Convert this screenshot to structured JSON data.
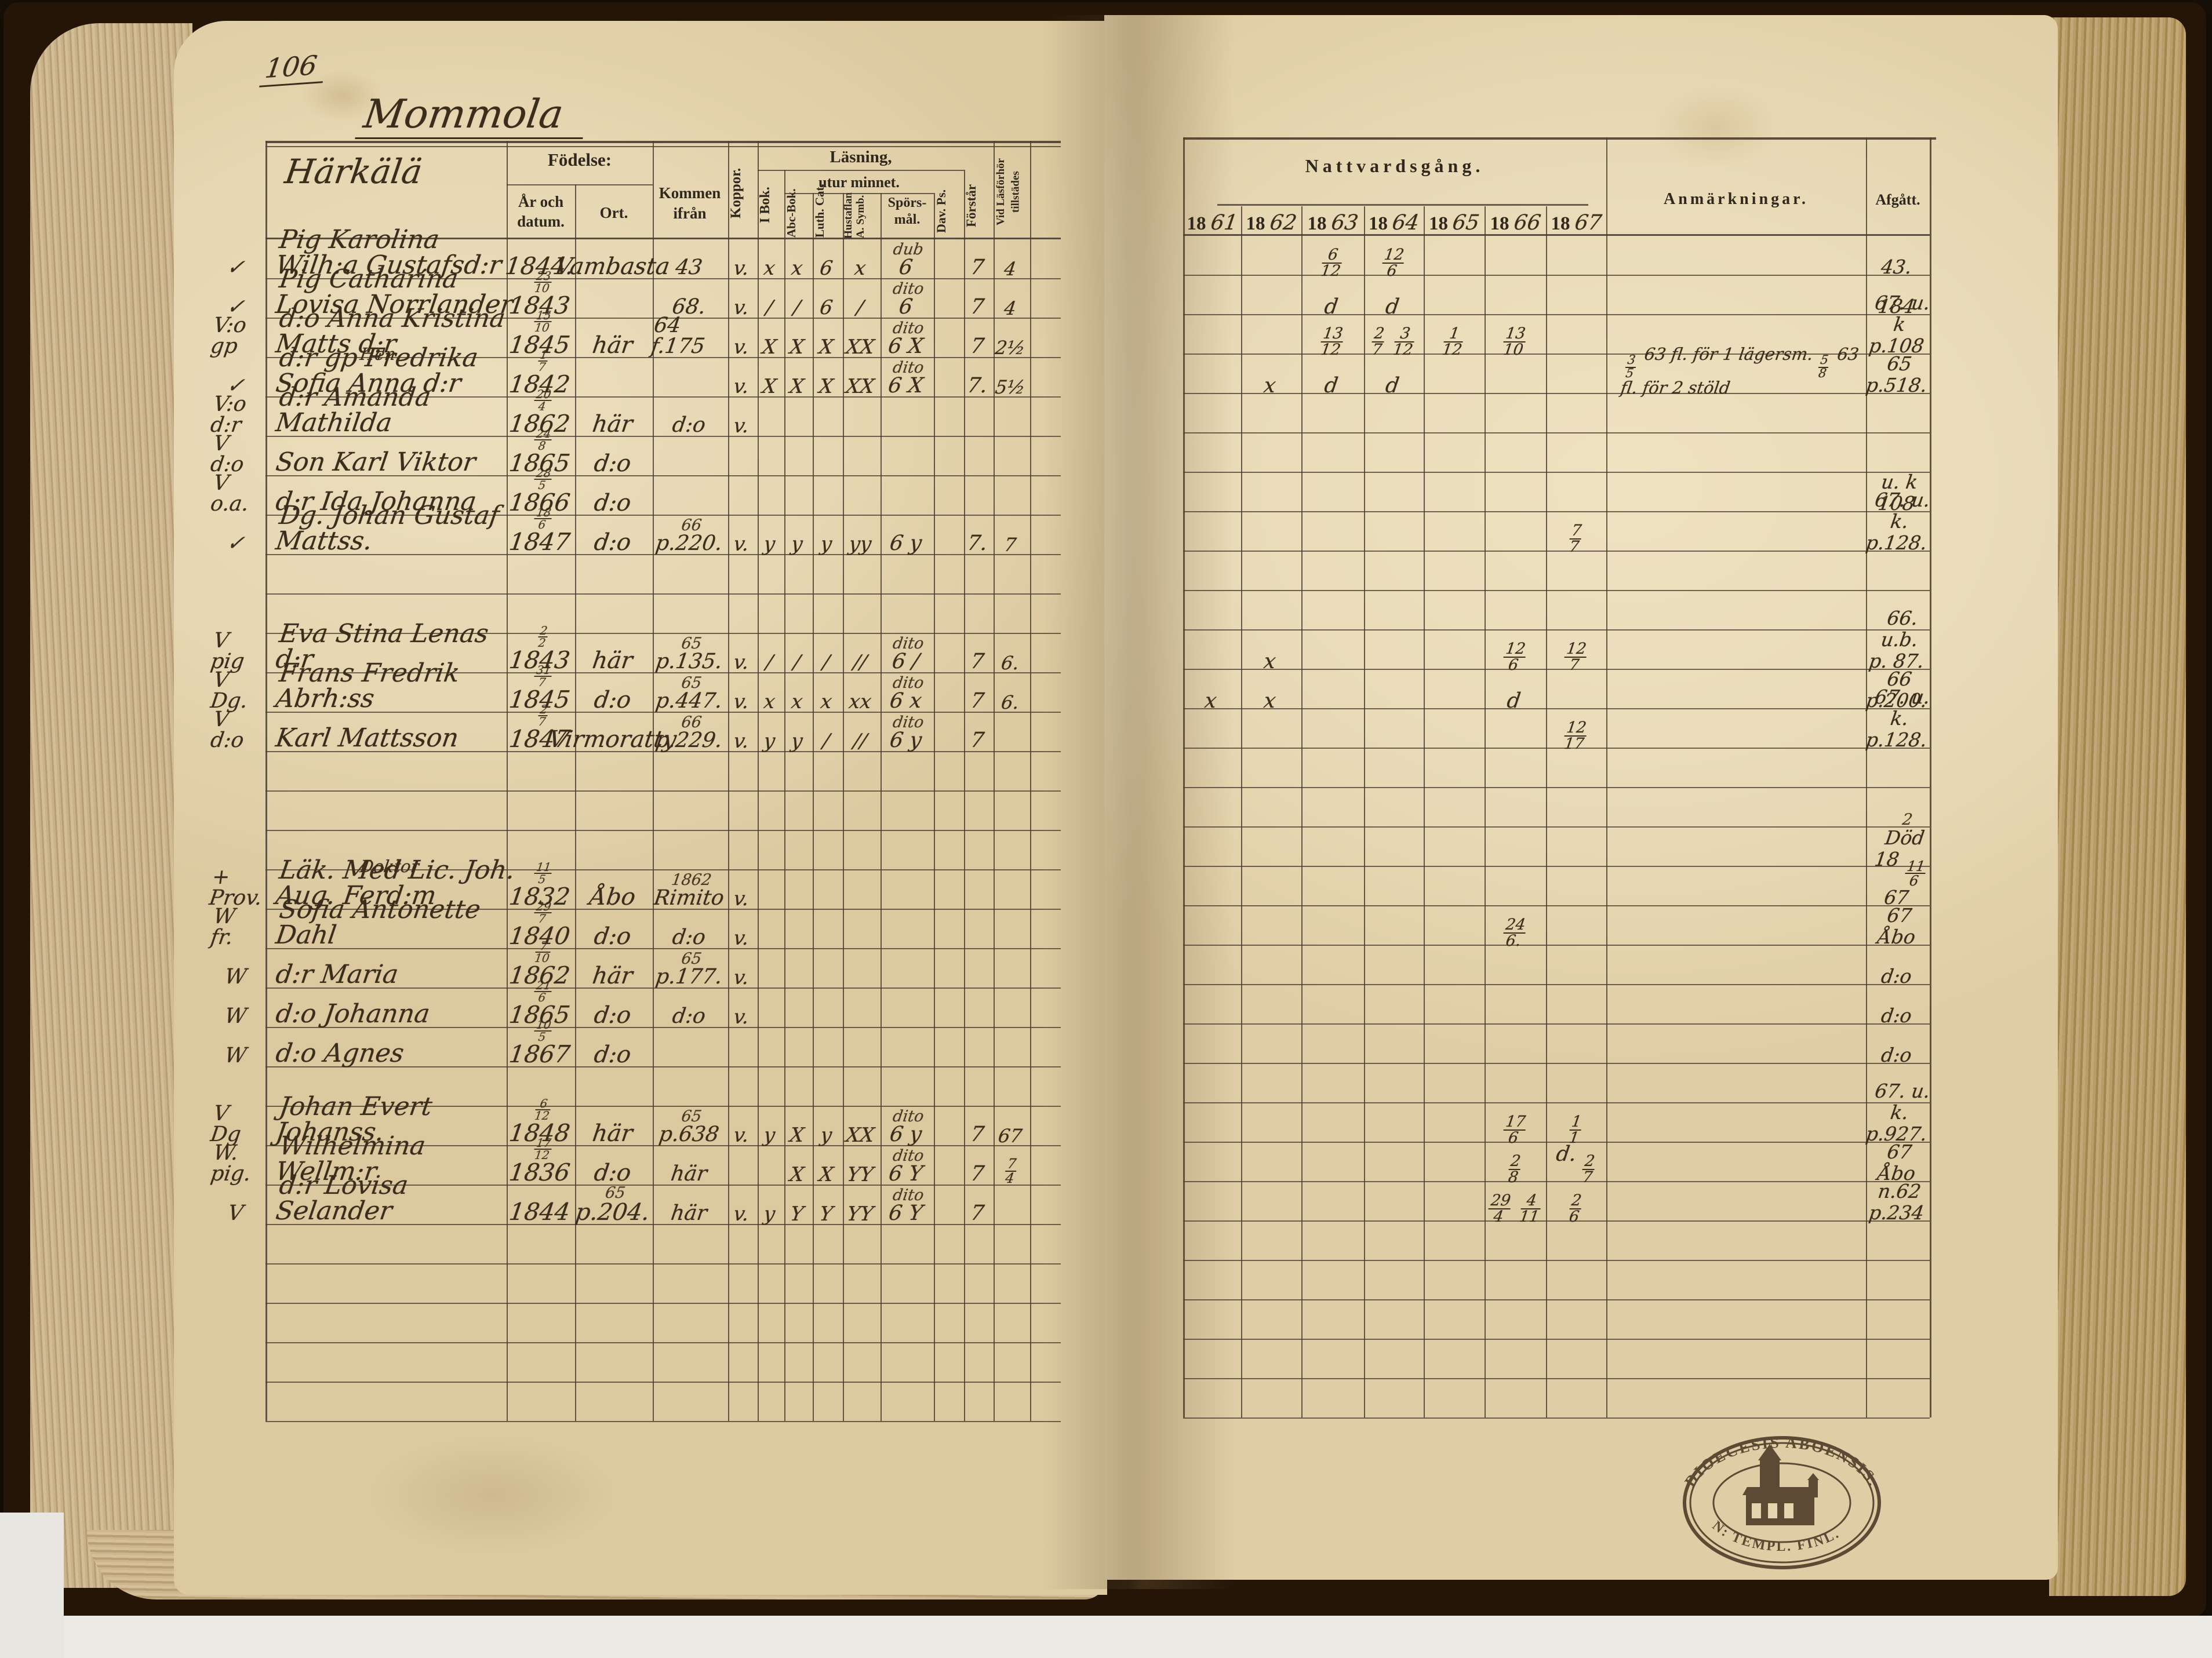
{
  "page": {
    "number": "106",
    "title": "Mommola",
    "section": "Härkälä"
  },
  "headers": {
    "fodelse": "Födelse:",
    "ar_och_datum": "År och datum.",
    "ort": "Ort.",
    "kommen": "Kommen ifrån",
    "koppor": "Koppor.",
    "lasning": "Läsning,",
    "utur": "utur minnet.",
    "ibok": "I Bok.",
    "abc": "Abc-Bok.",
    "luth": "Luth. Cat.",
    "hust": "Hustaflan A. Symb.",
    "spors": "Spörs-mål.",
    "davps": "Dav. Ps.",
    "forstar": "Förstår",
    "vidlas": "Vid Läsförhör tillstädes",
    "nattvard": "Nattvardsgång.",
    "years": [
      {
        "printed": "18",
        "hand": "61"
      },
      {
        "printed": "18",
        "hand": "62"
      },
      {
        "printed": "18",
        "hand": "63"
      },
      {
        "printed": "18",
        "hand": "64"
      },
      {
        "printed": "18",
        "hand": "65"
      },
      {
        "printed": "18",
        "hand": "66"
      },
      {
        "printed": "18",
        "hand": "67"
      }
    ],
    "anm": "Anmärkningar.",
    "afgatt": "Afgått."
  },
  "stamp": {
    "top": "DIOECESIS ABOENSIS.",
    "bottom": "N: TEMPL. FINL."
  },
  "ink": "#3b2d1c",
  "rows": [
    {
      "r": 0,
      "mark": "✓",
      "name": "Pig Karolina Wilh:a Gustafsd:r",
      "d_year": "1844.",
      "ort": "Vambasta",
      "kom": "43",
      "kop": "v.",
      "ibok": "x",
      "abc": "x",
      "luth": "6",
      "hust": "x",
      "sp_top": "dub",
      "sp": "6",
      "fors": "7",
      "vid": "4",
      "y63": "6/12",
      "y64": "12/6",
      "af": [
        "43."
      ]
    },
    {
      "r": 1,
      "mark": "✓",
      "name": "Pig Catharina Lovisa Norrlander",
      "d_top": "23/10",
      "d_year": "1843",
      "kom": "68.",
      "kop": "v.",
      "ibok": "/",
      "abc": "/",
      "luth": "6",
      "hust": "/",
      "sp_top": "dito",
      "sp": "6",
      "fors": "7",
      "vid": "4",
      "y63": "d",
      "y64": "d",
      "af": [
        "184"
      ]
    },
    {
      "r": 2,
      "mark": "V:o gp",
      "name": "d:o Anna Kristina Matts d:r",
      "d_top": "15/10",
      "d_year": "1845",
      "ort": "här",
      "kom": "64 f.175",
      "kop": "v.",
      "ibok": "X",
      "abc": "X",
      "luth": "X",
      "hust": "XX",
      "sp_top": "dito",
      "sp": "6 X",
      "fors": "7",
      "vid": "2½",
      "y63": "13/12",
      "y64": "2/7 3/12",
      "y65": "1/12",
      "y66": "13/10",
      "af": [
        "67. u. k",
        "p.108"
      ]
    },
    {
      "r": 3,
      "mark": "✓",
      "pre": "Hen",
      "name": "d:r gp Fredrika Sofia Anna d:r",
      "d_top": "1/7",
      "d_year": "1842",
      "kop": "v.",
      "ibok": "X",
      "abc": "X",
      "luth": "X",
      "hust": "XX",
      "sp_top": "dito",
      "sp": "6 X",
      "fors": "7.",
      "vid": "5½",
      "y62": "x",
      "y63": "d",
      "y64": "d",
      "anm": "3/5 63 fl. för 1 lägersm. 5/8 63 fl. för 2 stöld",
      "af": [
        "65",
        "p.518."
      ]
    },
    {
      "r": 4,
      "mark": "V:o d:r",
      "name": "d:r Amanda Mathilda",
      "d_top": "20/4",
      "d_year": "1862",
      "ort": "här",
      "kom": "d:o",
      "kop": "v."
    },
    {
      "r": 5,
      "mark": "V d:o",
      "name": "Son Karl Viktor",
      "d_top": "24/8",
      "d_year": "1865",
      "ort": "d:o"
    },
    {
      "r": 6,
      "mark": "V o.a.",
      "name": "d:r Ida Johanna",
      "d_top": "28/5",
      "d_year": "1866",
      "ort": "d:o",
      "af": [
        "u. k",
        "108"
      ]
    },
    {
      "r": 7,
      "mark": "✓",
      "name": "Dg. Johan Gustaf Mattss.",
      "d_top": "18/6",
      "d_year": "1847",
      "ort": "d:o",
      "kom_top": "66",
      "kom": "p.220.",
      "kop": "v.",
      "ibok": "y",
      "abc": "y",
      "luth": "y",
      "hust": "yy",
      "sp": "6 y",
      "fors": "7.",
      "vid": "7",
      "y67": "7/7",
      "af": [
        "67. u. k.",
        "p.128."
      ]
    },
    {
      "r": 10,
      "mark": "V pig",
      "name": "Eva Stina Lenas d:r",
      "d_top": "2/2",
      "d_year": "1843",
      "ort": "här",
      "kom_top": "65",
      "kom": "p.135.",
      "kop": "v.",
      "ibok": "/",
      "abc": "/",
      "luth": "/",
      "hust": "//",
      "sp_top": "dito",
      "sp": "6 /",
      "fors": "7",
      "vid": "6.",
      "y62": "x",
      "y66": "12/6",
      "y67": "12/7",
      "af": [
        "66. u.b.",
        "p. 87."
      ]
    },
    {
      "r": 11,
      "mark": "V Dg.",
      "name": "Frans Fredrik Abrh:ss",
      "d_top": "31/7",
      "d_year": "1845",
      "ort": "d:o",
      "kom_top": "65",
      "kom": "p.447.",
      "kop": "v.",
      "ibok": "x",
      "abc": "x",
      "luth": "x",
      "hust": "xx",
      "sp_top": "dito",
      "sp": "6 x",
      "fors": "7",
      "vid": "6.",
      "y61": "x",
      "y62": "x",
      "y66": "d",
      "af": [
        "66",
        "p.200."
      ]
    },
    {
      "r": 12,
      "mark": "V d:o",
      "name": "Karl Mattsson",
      "d_top": "2/7",
      "d_year": "1847",
      "ort": "Virmoratty",
      "kom_top": "66",
      "kom": "p.229.",
      "kop": "v.",
      "ibok": "y",
      "abc": "y",
      "luth": "/",
      "hust": "//",
      "sp_top": "dito",
      "sp": "6 y",
      "fors": "7",
      "y67": "12/17",
      "af": [
        "67. u. k.",
        "p.128."
      ]
    },
    {
      "r": 16,
      "mark": "+ Prov.",
      "pre": "Doktor",
      "name": "Läk. Med Lic. Joh. Aug. Ferd:m",
      "d_top": "11/5",
      "d_year": "1832",
      "ort": "Åbo",
      "kom_top": "1862",
      "kom": "Rimito",
      "kop": "v.",
      "af_top": "2",
      "af": [
        "Död",
        "18 11/6 67"
      ]
    },
    {
      "r": 17,
      "mark": "W fr.",
      "name": "Sofia Antonette Dahl",
      "d_top": "29/7",
      "d_year": "1840",
      "ort": "d:o",
      "kom": "d:o",
      "kop": "v.",
      "y66": "24/6.",
      "af": [
        "67",
        "Åbo"
      ]
    },
    {
      "r": 18,
      "mark": "W",
      "name": "d:r Maria",
      "d_top": "7/10",
      "d_year": "1862",
      "ort": "här",
      "kom_top": "65",
      "kom": "p.177.",
      "kop": "v.",
      "af": [
        "d:o"
      ]
    },
    {
      "r": 19,
      "mark": "W",
      "name": "d:o Johanna",
      "d_top": "21/6",
      "d_year": "1865",
      "ort": "d:o",
      "kom": "d:o",
      "kop": "v.",
      "af": [
        "d:o"
      ]
    },
    {
      "r": 20,
      "mark": "W",
      "name": "d:o Agnes",
      "d_top": "10/5",
      "d_year": "1867",
      "ort": "d:o",
      "af": [
        "d:o"
      ]
    },
    {
      "r": 22,
      "mark": "V Dg",
      "name": "Johan Evert Johanss.",
      "d_top": "6/12",
      "d_year": "1848",
      "ort": "här",
      "kom_top": "65",
      "kom": "p.638",
      "kop": "v.",
      "ibok": "y",
      "abc": "X",
      "luth": "y",
      "hust": "XX",
      "sp_top": "dito",
      "sp": "6 y",
      "fors": "7",
      "vid": "67",
      "y66": "17/6",
      "y67": "1/1",
      "af": [
        "67. u. k.",
        "p.927."
      ]
    },
    {
      "r": 23,
      "mark": "W. pig.",
      "name": "Wilhelmina Wellm:r",
      "d_top": "17/12",
      "d_year": "1836",
      "ort": "d:o",
      "kom": "här",
      "abc": "X",
      "luth": "X",
      "hust": "YY",
      "sp_top": "dito",
      "sp": "6 Y",
      "fors": "7",
      "vid": "7/4",
      "y66": "2/8",
      "y67": "d. 2/7",
      "af": [
        "67",
        "Åbo"
      ]
    },
    {
      "r": 24,
      "mark": "V",
      "name": "d:r Lovisa Selander",
      "d_year": "1844",
      "ort_top": "65",
      "ort": "p.204.",
      "kom": "här",
      "kop": "v.",
      "ibok": "y",
      "abc": "Y",
      "luth": "Y",
      "hust": "YY",
      "sp_top": "dito",
      "sp": "6 Y",
      "fors": "7",
      "y66": "29/4 4/11",
      "y67": "2/6",
      "af": [
        "n.62",
        "p.234"
      ]
    }
  ]
}
